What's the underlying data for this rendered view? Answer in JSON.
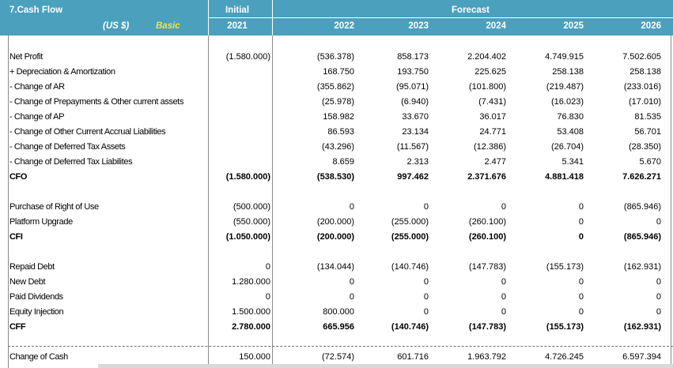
{
  "header": {
    "title": "7.Cash Flow",
    "currency": "(US $)",
    "scenario": "Basic",
    "initial_label": "Initial",
    "forecast_label": "Forecast",
    "years": [
      "2021",
      "2022",
      "2023",
      "2024",
      "2025",
      "2026"
    ]
  },
  "rows": [
    {
      "label": "Net Profit",
      "values": [
        "(1.580.000)",
        "(536.378)",
        "858.173",
        "2.204.402",
        "4.749.915",
        "7.502.605"
      ]
    },
    {
      "label": " + Depreciation & Amortization",
      "values": [
        "",
        "168.750",
        "193.750",
        "225.625",
        "258.138",
        "258.138"
      ]
    },
    {
      "label": " - Change of AR",
      "values": [
        "",
        "(355.862)",
        "(95.071)",
        "(101.800)",
        "(219.487)",
        "(233.016)"
      ]
    },
    {
      "label": " - Change of Prepayments & Other current assets",
      "values": [
        "",
        "(25.978)",
        "(6.940)",
        "(7.431)",
        "(16.023)",
        "(17.010)"
      ]
    },
    {
      "label": " - Change of AP",
      "values": [
        "",
        "158.982",
        "33.670",
        "36.017",
        "76.830",
        "81.535"
      ]
    },
    {
      "label": " - Change of Other Current Accrual Liabilities",
      "values": [
        "",
        "86.593",
        "23.134",
        "24.771",
        "53.408",
        "56.701"
      ]
    },
    {
      "label": " - Change of Deferred Tax Assets",
      "values": [
        "",
        "(43.296)",
        "(11.567)",
        "(12.386)",
        "(26.704)",
        "(28.350)"
      ]
    },
    {
      "label": " - Change of Deferred Tax Liabilites",
      "values": [
        "",
        "8.659",
        "2.313",
        "2.477",
        "5.341",
        "5.670"
      ]
    },
    {
      "label": "CFO",
      "values": [
        "(1.580.000)",
        "(538.530)",
        "997.462",
        "2.371.676",
        "4.881.418",
        "7.626.271"
      ]
    },
    {
      "label": "Purchase of Right of Use",
      "values": [
        "(500.000)",
        "0",
        "0",
        "0",
        "0",
        "(865.946)"
      ]
    },
    {
      "label": "Platform Upgrade",
      "values": [
        "(550.000)",
        "(200.000)",
        "(255.000)",
        "(260.100)",
        "0",
        "0"
      ]
    },
    {
      "label": "CFI",
      "values": [
        "(1.050.000)",
        "(200.000)",
        "(255.000)",
        "(260.100)",
        "0",
        "(865.946)"
      ]
    },
    {
      "label": "Repaid Debt",
      "values": [
        "0",
        "(134.044)",
        "(140.746)",
        "(147.783)",
        "(155.173)",
        "(162.931)"
      ]
    },
    {
      "label": "New Debt",
      "values": [
        "1.280.000",
        "0",
        "0",
        "0",
        "0",
        "0"
      ]
    },
    {
      "label": "Paid Dividends",
      "values": [
        "0",
        "0",
        "0",
        "0",
        "0",
        "0"
      ]
    },
    {
      "label": "Equity Injection",
      "values": [
        "1.500.000",
        "800.000",
        "0",
        "0",
        "0",
        "0"
      ]
    },
    {
      "label": "CFF",
      "values": [
        "2.780.000",
        "665.956",
        "(140.746)",
        "(147.783)",
        "(155.173)",
        "(162.931)"
      ]
    },
    {
      "label": "Change of Cash",
      "values": [
        "150.000",
        "(72.574)",
        "601.716",
        "1.963.792",
        "4.726.245",
        "6.597.394"
      ]
    }
  ]
}
